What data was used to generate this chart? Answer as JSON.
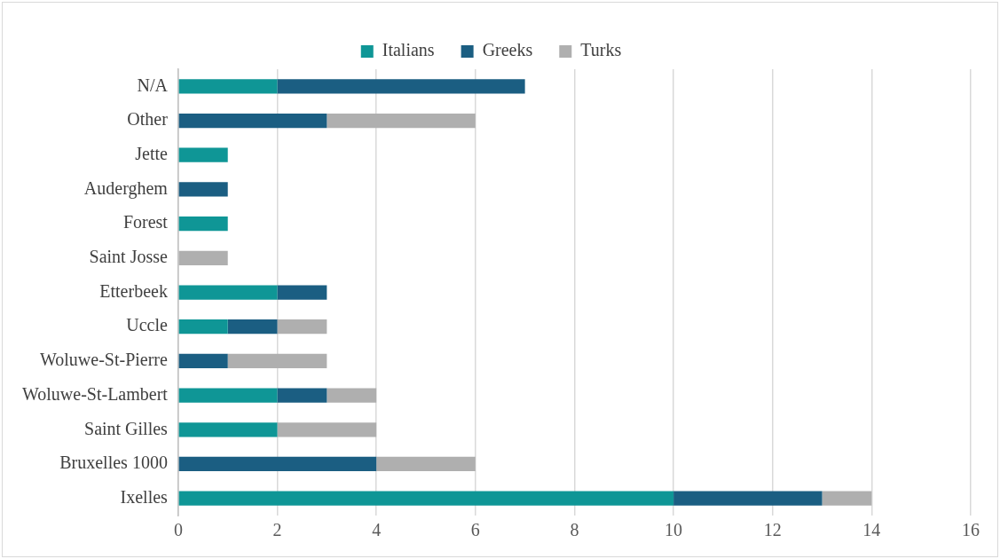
{
  "chart_data": {
    "type": "bar",
    "orientation": "horizontal",
    "stacked": true,
    "categories": [
      "N/A",
      "Other",
      "Jette",
      "Auderghem",
      "Forest",
      "Saint Josse",
      "Etterbeek",
      "Uccle",
      "Woluwe-St-Pierre",
      "Woluwe-St-Lambert",
      "Saint Gilles",
      "Bruxelles 1000",
      "Ixelles"
    ],
    "series": [
      {
        "name": "Italians",
        "color": "#0f9696",
        "values": [
          2,
          0,
          1,
          0,
          1,
          0,
          2,
          1,
          0,
          2,
          2,
          0,
          10
        ]
      },
      {
        "name": "Greeks",
        "color": "#1b5e82",
        "values": [
          5,
          3,
          0,
          1,
          0,
          0,
          1,
          1,
          1,
          1,
          0,
          4,
          3
        ]
      },
      {
        "name": "Turks",
        "color": "#afafaf",
        "values": [
          0,
          3,
          0,
          0,
          0,
          1,
          0,
          1,
          2,
          1,
          2,
          2,
          1
        ]
      }
    ],
    "xlim": [
      0,
      16
    ],
    "xticks": [
      0,
      2,
      4,
      6,
      8,
      10,
      12,
      14,
      16
    ],
    "grid": "x",
    "legend": "top"
  }
}
